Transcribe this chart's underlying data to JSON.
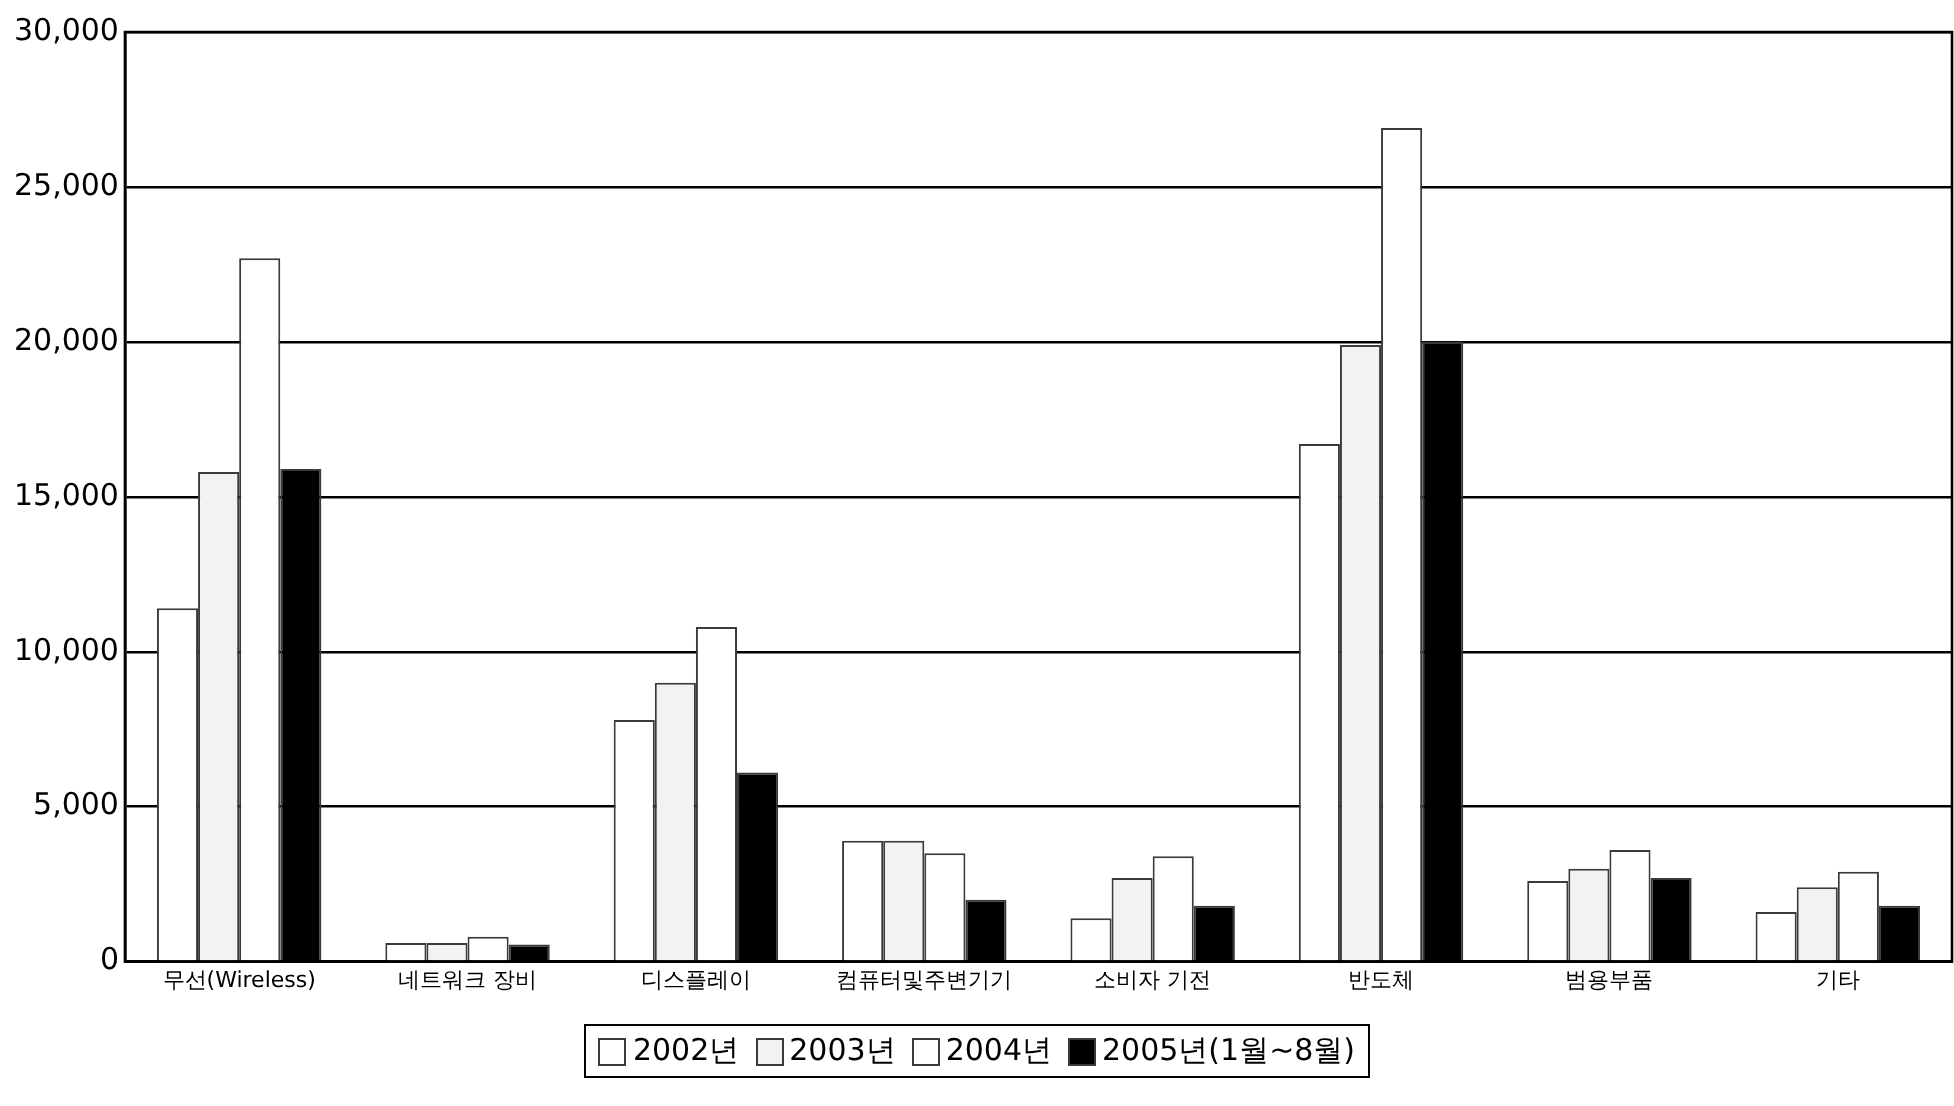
{
  "chart_data": {
    "type": "bar",
    "categories": [
      "무선(Wireless)",
      "네트워크 장비",
      "디스플레이",
      "컴퓨터및주변기기",
      "소비자 기전",
      "반도체",
      "범용부품",
      "기타"
    ],
    "series": [
      {
        "name": "2002년",
        "color": "#ffffff",
        "values": [
          11400,
          600,
          7800,
          3900,
          1400,
          16700,
          2600,
          1600
        ]
      },
      {
        "name": "2003년",
        "color": "#f2f2f2",
        "values": [
          15800,
          600,
          9000,
          3900,
          2700,
          19900,
          3000,
          2400
        ]
      },
      {
        "name": "2004년",
        "color": "#ffffff",
        "values": [
          22700,
          800,
          10800,
          3500,
          3400,
          26900,
          3600,
          2900
        ]
      },
      {
        "name": "2005년(1월~8월)",
        "color": "#000000",
        "values": [
          15900,
          550,
          6100,
          2000,
          1800,
          20000,
          2700,
          1800
        ]
      }
    ],
    "ylim": [
      0,
      30000
    ],
    "yticks": [
      0,
      {
        "value": 5000,
        "label": "5,000"
      },
      {
        "value": 10000,
        "label": "10,000"
      },
      {
        "value": 15000,
        "label": "15,000"
      },
      {
        "value": 20000,
        "label": "20,000"
      },
      {
        "value": 25000,
        "label": "25,000"
      },
      {
        "value": 30000,
        "label": "30,000"
      }
    ],
    "grid": "y",
    "legend": "bottom"
  }
}
